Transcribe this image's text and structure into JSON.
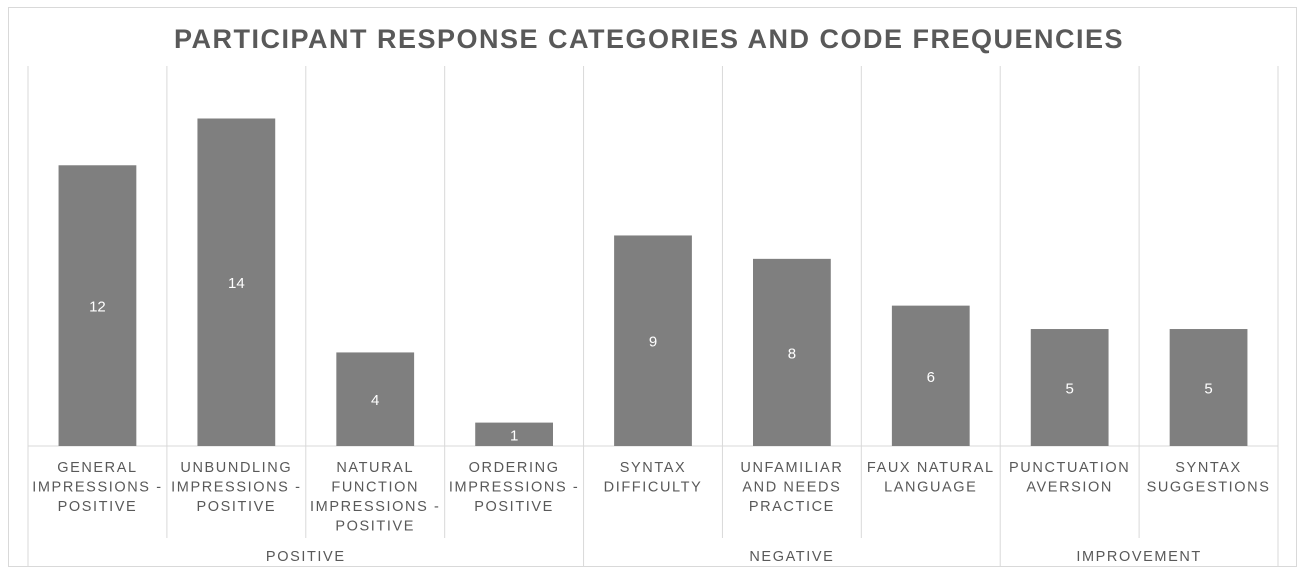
{
  "chart_data": {
    "type": "bar",
    "title": "PARTICIPANT RESPONSE CATEGORIES AND CODE FREQUENCIES",
    "xlabel": "",
    "ylabel": "",
    "ylim": [
      0,
      16
    ],
    "grid": false,
    "legend": "none",
    "categories": [
      [
        "GENERAL",
        "IMPRESSIONS -",
        "POSITIVE"
      ],
      [
        "UNBUNDLING",
        "IMPRESSIONS -",
        "POSITIVE"
      ],
      [
        "NATURAL",
        "FUNCTION",
        "IMPRESSIONS -",
        "POSITIVE"
      ],
      [
        "ORDERING",
        "IMPRESSIONS -",
        "POSITIVE"
      ],
      [
        "SYNTAX",
        "DIFFICULTY"
      ],
      [
        "UNFAMILIAR",
        "AND NEEDS",
        "PRACTICE"
      ],
      [
        "FAUX NATURAL",
        "LANGUAGE"
      ],
      [
        "PUNCTUATION",
        "AVERSION"
      ],
      [
        "SYNTAX",
        "SUGGESTIONS"
      ]
    ],
    "values": [
      12,
      14,
      4,
      1,
      9,
      8,
      6,
      5,
      5
    ],
    "groups": [
      {
        "name": "POSITIVE",
        "count": 4
      },
      {
        "name": "NEGATIVE",
        "count": 3
      },
      {
        "name": "IMPROVEMENT",
        "count": 2
      }
    ],
    "colors": {
      "bar": "#7f7f7f",
      "bar_label": "#ffffff",
      "text": "#595959",
      "axis": "#d9d9d9"
    }
  }
}
